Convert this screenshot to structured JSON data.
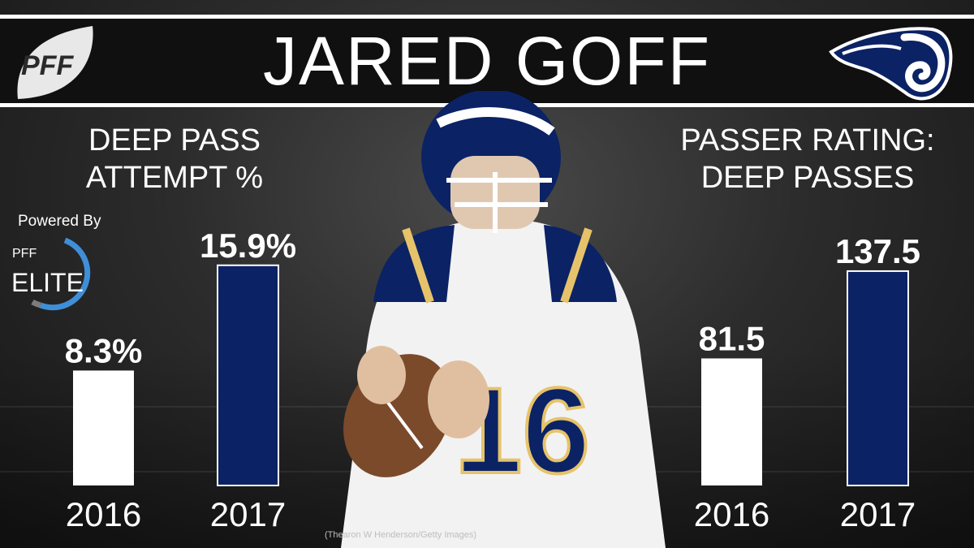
{
  "header": {
    "title": "JARED GOFF",
    "pff_logo_text": "PFF"
  },
  "left_panel": {
    "title_line1": "DEEP PASS",
    "title_line2": "ATTEMPT %",
    "powered_by": "Powered By",
    "elite_pff": "PFF",
    "elite_word": "ELITE"
  },
  "right_panel": {
    "title_line1": "PASSER RATING:",
    "title_line2": "DEEP PASSES"
  },
  "photo_credit": "(Thearon W Henderson/Getty Images)",
  "colors": {
    "bar_2016": "#ffffff",
    "bar_2017": "#0b2265",
    "band": "#101010",
    "background": "#2c2c2c"
  },
  "chart_data": [
    {
      "type": "bar",
      "title": "DEEP PASS ATTEMPT %",
      "categories": [
        "2016",
        "2017"
      ],
      "values": [
        8.3,
        15.9
      ],
      "data_labels": [
        "8.3%",
        "15.9%"
      ],
      "ylim": [
        0,
        17
      ],
      "grid": false
    },
    {
      "type": "bar",
      "title": "PASSER RATING: DEEP PASSES",
      "categories": [
        "2016",
        "2017"
      ],
      "values": [
        81.5,
        137.5
      ],
      "data_labels": [
        "81.5",
        "137.5"
      ],
      "ylim": [
        0,
        151
      ],
      "grid": false
    }
  ]
}
